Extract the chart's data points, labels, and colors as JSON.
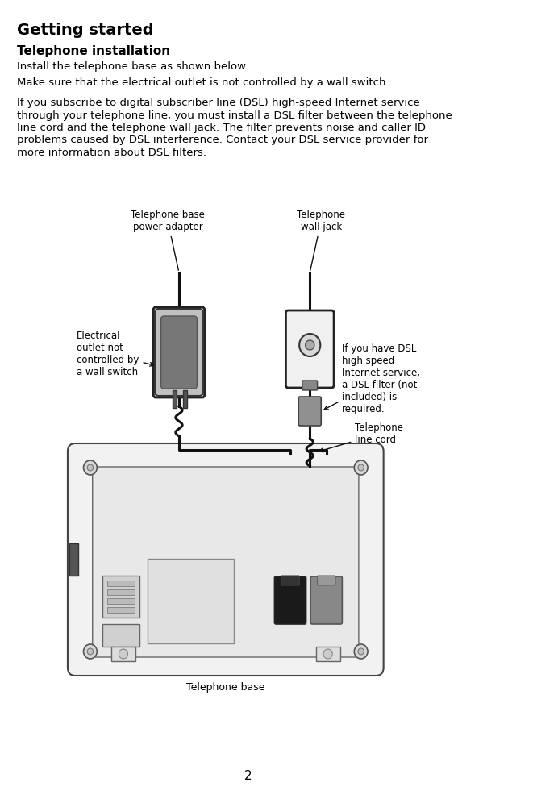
{
  "title": "Getting started",
  "subtitle": "Telephone installation",
  "para1": "Install the telephone base as shown below.",
  "para2": "Make sure that the electrical outlet is not controlled by a wall switch.",
  "para3_lines": [
    "If you subscribe to digital subscriber line (DSL) high-speed Internet service",
    "through your telephone line, you must install a DSL filter between the telephone",
    "line cord and the telephone wall jack. The filter prevents noise and caller ID",
    "problems caused by DSL interference. Contact your DSL service provider for",
    "more information about DSL filters."
  ],
  "label_power_adapter": "Telephone base\npower adapter",
  "label_wall_jack": "Telephone\nwall jack",
  "label_electrical": "Electrical\noutlet not\ncontrolled by\na wall switch",
  "label_dsl": "If you have DSL\nhigh speed\nInternet service,\na DSL filter (not\nincluded) is\nrequired.",
  "label_line_cord": "Telephone\nline cord",
  "label_base": "Telephone base",
  "page_number": "2",
  "bg_color": "#ffffff",
  "text_color": "#000000",
  "title_fontsize": 14,
  "subtitle_fontsize": 11,
  "body_fontsize": 9.5,
  "label_fontsize": 8.5
}
